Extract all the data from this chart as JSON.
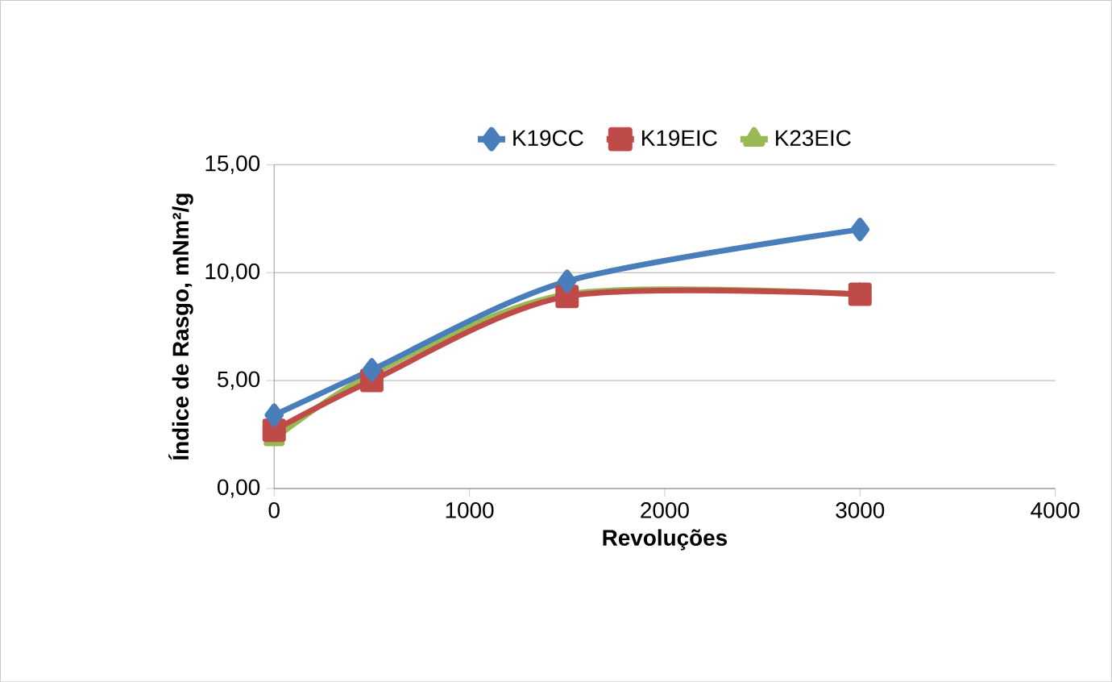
{
  "chart_data": {
    "type": "line",
    "xlabel": "Revoluções",
    "ylabel": "Índice de Rasgo, mNm²/g",
    "x": [
      0,
      500,
      1500,
      3000
    ],
    "series": [
      {
        "name": "K19CC",
        "color": "#4a7ebb",
        "marker": "diamond",
        "values": [
          3.4,
          5.5,
          9.6,
          12.0
        ]
      },
      {
        "name": "K19EIC",
        "color": "#be4b48",
        "marker": "square",
        "values": [
          2.7,
          5.0,
          8.9,
          9.0
        ]
      },
      {
        "name": "K23EIC",
        "color": "#98b954",
        "marker": "triangle",
        "values": [
          2.3,
          5.3,
          9.0,
          9.0
        ]
      }
    ],
    "xlim": [
      0,
      4000
    ],
    "xticks": [
      0,
      1000,
      2000,
      3000,
      4000
    ],
    "ylim": [
      0,
      15
    ],
    "yticks": [
      {
        "value": 0,
        "label": "0,00"
      },
      {
        "value": 5,
        "label": "5,00"
      },
      {
        "value": 10,
        "label": "10,00"
      },
      {
        "value": 15,
        "label": "15,00"
      }
    ],
    "grid": "y",
    "legend": "top"
  }
}
